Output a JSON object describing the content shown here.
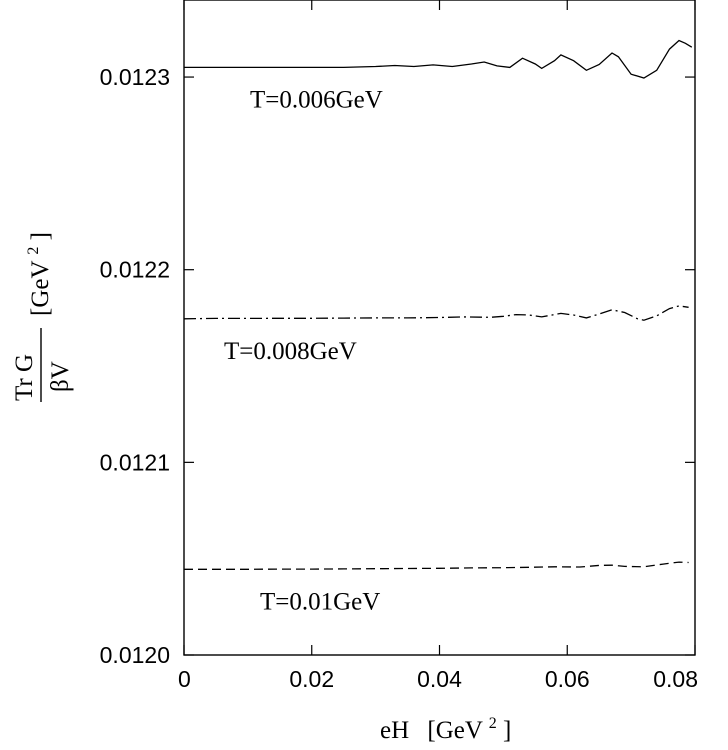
{
  "chart_data": {
    "type": "line",
    "xlabel": {
      "main": "eH",
      "unit_open": "[GeV",
      "unit_sup": "2",
      "unit_close": "]"
    },
    "ylabel": {
      "numerator": "Tr G",
      "denominator": "βV",
      "unit_open": "[GeV",
      "unit_sup": "2",
      "unit_close": "]"
    },
    "xlim": [
      0,
      0.08
    ],
    "ylim": [
      0.012,
      0.01234
    ],
    "x_ticks": [
      {
        "value": 0,
        "label": "0"
      },
      {
        "value": 0.02,
        "label": "0.02"
      },
      {
        "value": 0.04,
        "label": "0.04"
      },
      {
        "value": 0.06,
        "label": "0.06"
      },
      {
        "value": 0.08,
        "label": "0.08"
      }
    ],
    "y_ticks": [
      {
        "value": 0.012,
        "label": "0.0120"
      },
      {
        "value": 0.0121,
        "label": "0.0121"
      },
      {
        "value": 0.0122,
        "label": "0.0122"
      },
      {
        "value": 0.0123,
        "label": "0.0123"
      }
    ],
    "grid": false,
    "series": [
      {
        "label": "T=0.006GeV",
        "line_style": "solid",
        "base": 0.012305,
        "points": [
          [
            0,
            0.012305
          ],
          [
            0.005,
            0.012305
          ],
          [
            0.01,
            0.012305
          ],
          [
            0.015,
            0.012305
          ],
          [
            0.02,
            0.012305
          ],
          [
            0.025,
            0.012305
          ],
          [
            0.03,
            0.0123055
          ],
          [
            0.033,
            0.012306
          ],
          [
            0.036,
            0.0123055
          ],
          [
            0.039,
            0.0123063
          ],
          [
            0.042,
            0.0123055
          ],
          [
            0.045,
            0.0123068
          ],
          [
            0.047,
            0.0123078
          ],
          [
            0.049,
            0.0123058
          ],
          [
            0.051,
            0.012305
          ],
          [
            0.053,
            0.0123098
          ],
          [
            0.055,
            0.0123068
          ],
          [
            0.056,
            0.0123045
          ],
          [
            0.058,
            0.0123085
          ],
          [
            0.059,
            0.0123115
          ],
          [
            0.061,
            0.0123085
          ],
          [
            0.063,
            0.0123035
          ],
          [
            0.065,
            0.0123065
          ],
          [
            0.067,
            0.0123125
          ],
          [
            0.068,
            0.0123105
          ],
          [
            0.07,
            0.0123015
          ],
          [
            0.072,
            0.0122995
          ],
          [
            0.074,
            0.0123035
          ],
          [
            0.076,
            0.0123145
          ],
          [
            0.0775,
            0.012319
          ],
          [
            0.0785,
            0.0123175
          ],
          [
            0.0795,
            0.0123155
          ]
        ]
      },
      {
        "label": "T=0.008GeV",
        "line_style": "dashdot",
        "base": 0.0121745,
        "points": [
          [
            0,
            0.0121745
          ],
          [
            0.005,
            0.0121747
          ],
          [
            0.01,
            0.0121747
          ],
          [
            0.015,
            0.0121748
          ],
          [
            0.02,
            0.0121748
          ],
          [
            0.025,
            0.0121749
          ],
          [
            0.03,
            0.012175
          ],
          [
            0.035,
            0.012175
          ],
          [
            0.04,
            0.0121752
          ],
          [
            0.044,
            0.0121755
          ],
          [
            0.048,
            0.0121753
          ],
          [
            0.05,
            0.0121758
          ],
          [
            0.052,
            0.0121767
          ],
          [
            0.054,
            0.0121765
          ],
          [
            0.056,
            0.0121755
          ],
          [
            0.059,
            0.0121773
          ],
          [
            0.061,
            0.0121765
          ],
          [
            0.063,
            0.012175
          ],
          [
            0.065,
            0.012177
          ],
          [
            0.067,
            0.0121792
          ],
          [
            0.069,
            0.0121778
          ],
          [
            0.071,
            0.0121745
          ],
          [
            0.072,
            0.0121738
          ],
          [
            0.074,
            0.012176
          ],
          [
            0.076,
            0.0121798
          ],
          [
            0.0775,
            0.0121812
          ],
          [
            0.079,
            0.0121805
          ]
        ]
      },
      {
        "label": "T=0.01GeV",
        "line_style": "dashed",
        "base": 0.0120445,
        "points": [
          [
            0,
            0.0120445
          ],
          [
            0.005,
            0.0120445
          ],
          [
            0.01,
            0.0120445
          ],
          [
            0.015,
            0.0120446
          ],
          [
            0.02,
            0.0120446
          ],
          [
            0.025,
            0.0120447
          ],
          [
            0.03,
            0.0120448
          ],
          [
            0.035,
            0.0120449
          ],
          [
            0.04,
            0.012045
          ],
          [
            0.045,
            0.0120452
          ],
          [
            0.05,
            0.0120453
          ],
          [
            0.054,
            0.0120455
          ],
          [
            0.058,
            0.0120458
          ],
          [
            0.062,
            0.0120457
          ],
          [
            0.065,
            0.0120465
          ],
          [
            0.067,
            0.0120466
          ],
          [
            0.069,
            0.012046
          ],
          [
            0.072,
            0.0120458
          ],
          [
            0.075,
            0.0120472
          ],
          [
            0.0775,
            0.0120482
          ],
          [
            0.079,
            0.012048
          ]
        ]
      }
    ]
  }
}
